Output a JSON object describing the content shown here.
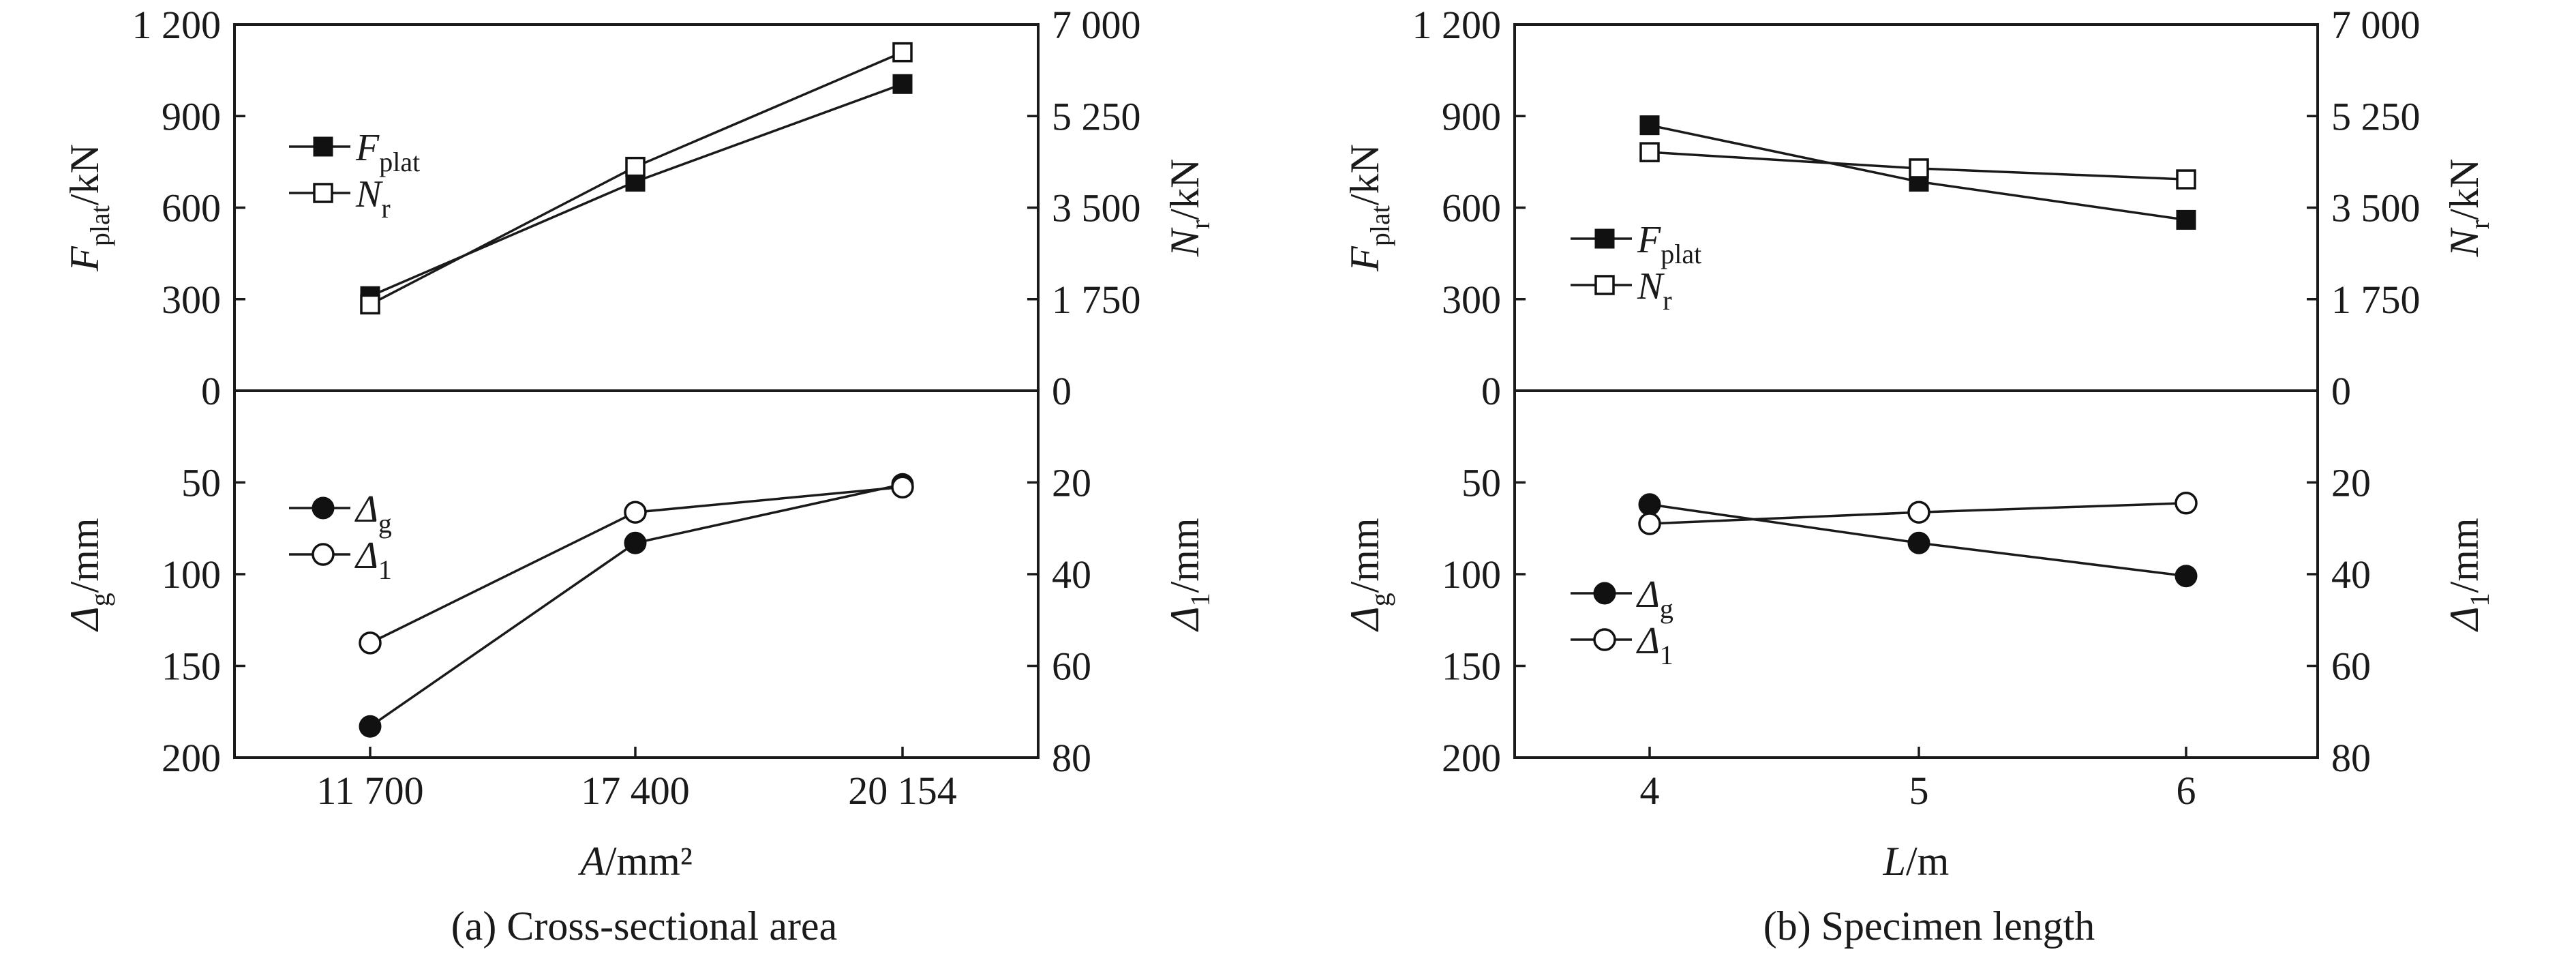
{
  "chart_data": [
    {
      "type": "line",
      "caption": "(a) Cross-sectional area",
      "xlabel": {
        "main": "A",
        "unit": "/mm²"
      },
      "categories": [
        "11 700",
        "17 400",
        "20 154"
      ],
      "upper": {
        "left_axis": {
          "label_main": "F",
          "label_sub": "plat",
          "unit": "/kN",
          "ylim": [
            0,
            1200
          ],
          "ticks": [
            "0",
            "300",
            "600",
            "900",
            "1 200"
          ]
        },
        "right_axis": {
          "label_main": "N",
          "label_sub": "r",
          "unit": "/kN",
          "ylim": [
            0,
            7000
          ],
          "ticks": [
            "0",
            "1 750",
            "3 500",
            "5 250",
            "7 000"
          ]
        },
        "series": [
          {
            "name_main": "F",
            "name_sub": "plat",
            "axis": "left",
            "marker": "filled-square",
            "values": [
              310,
              685,
              1005
            ]
          },
          {
            "name_main": "N",
            "name_sub": "r",
            "axis": "right",
            "marker": "open-square",
            "values": [
              1650,
              4280,
              6470
            ]
          }
        ]
      },
      "lower": {
        "left_axis": {
          "label_main": "Δ",
          "label_sub": "g",
          "unit": "/mm",
          "ylim": [
            0,
            200
          ],
          "inverted": true,
          "ticks": [
            "50",
            "100",
            "150",
            "200"
          ]
        },
        "right_axis": {
          "label_main": "Δ",
          "label_sub": "1",
          "unit": "/mm",
          "ylim": [
            0,
            80
          ],
          "inverted": true,
          "ticks": [
            "20",
            "40",
            "60",
            "80"
          ]
        },
        "series": [
          {
            "name_main": "Δ",
            "name_sub": "g",
            "axis": "left",
            "marker": "filled-circle",
            "values": [
              183,
              83,
              51
            ]
          },
          {
            "name_main": "Δ",
            "name_sub": "1",
            "axis": "right",
            "marker": "open-circle",
            "values": [
              55,
              26.5,
              21
            ]
          }
        ]
      }
    },
    {
      "type": "line",
      "caption": "(b) Specimen length",
      "xlabel": {
        "main": "L",
        "unit": "/m"
      },
      "categories": [
        "4",
        "5",
        "6"
      ],
      "upper": {
        "left_axis": {
          "label_main": "F",
          "label_sub": "plat",
          "unit": "/kN",
          "ylim": [
            0,
            1200
          ],
          "ticks": [
            "0",
            "300",
            "600",
            "900",
            "1 200"
          ]
        },
        "right_axis": {
          "label_main": "N",
          "label_sub": "r",
          "unit": "/kN",
          "ylim": [
            0,
            7000
          ],
          "ticks": [
            "0",
            "1 750",
            "3 500",
            "5 250",
            "7 000"
          ]
        },
        "series": [
          {
            "name_main": "F",
            "name_sub": "plat",
            "axis": "left",
            "marker": "filled-square",
            "values": [
              870,
              685,
              560
            ]
          },
          {
            "name_main": "N",
            "name_sub": "r",
            "axis": "right",
            "marker": "open-square",
            "values": [
              4560,
              4250,
              4040
            ]
          }
        ]
      },
      "lower": {
        "left_axis": {
          "label_main": "Δ",
          "label_sub": "g",
          "unit": "/mm",
          "ylim": [
            0,
            200
          ],
          "inverted": true,
          "ticks": [
            "50",
            "100",
            "150",
            "200"
          ]
        },
        "right_axis": {
          "label_main": "Δ",
          "label_sub": "1",
          "unit": "/mm",
          "ylim": [
            0,
            80
          ],
          "inverted": true,
          "ticks": [
            "20",
            "40",
            "60",
            "80"
          ]
        },
        "series": [
          {
            "name_main": "Δ",
            "name_sub": "g",
            "axis": "left",
            "marker": "filled-circle",
            "values": [
              62,
              83,
              101
            ]
          },
          {
            "name_main": "Δ",
            "name_sub": "1",
            "axis": "right",
            "marker": "open-circle",
            "values": [
              29,
              26.5,
              24.5
            ]
          }
        ]
      }
    }
  ]
}
